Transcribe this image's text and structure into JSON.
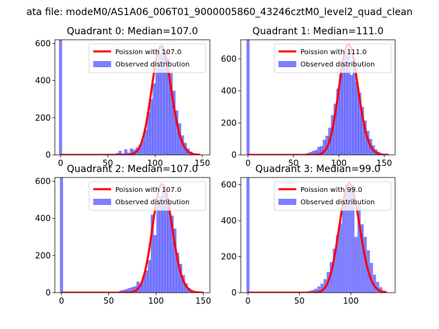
{
  "figure_title": "ata file: modeM0/AS1A06_006T01_9000005860_43246cztM0_level2_quad_clean",
  "chart_data": [
    {
      "type": "bar",
      "title": "Quadrant 0: Median=107.0",
      "xlim": [
        -6,
        158
      ],
      "ylim": [
        0,
        620
      ],
      "xticks": [
        0,
        50,
        100,
        150
      ],
      "yticks": [
        0,
        200,
        400,
        600
      ],
      "bin_width": 3.3,
      "legend": "top-right",
      "series": [
        {
          "name": "Poission with 107.0",
          "kind": "line",
          "color": "#ff0000",
          "mean": 107.0,
          "peak": 585,
          "x_range": [
            0,
            148
          ]
        },
        {
          "name": "Observed distribution",
          "kind": "hist",
          "color": "#0000ff",
          "bars": [
            {
              "x": 0,
              "y": 620
            },
            {
              "x": 60,
              "y": 10
            },
            {
              "x": 63,
              "y": 22
            },
            {
              "x": 66,
              "y": 8
            },
            {
              "x": 69,
              "y": 30
            },
            {
              "x": 72,
              "y": 12
            },
            {
              "x": 75,
              "y": 35
            },
            {
              "x": 78,
              "y": 28
            },
            {
              "x": 81,
              "y": 40
            },
            {
              "x": 84,
              "y": 55
            },
            {
              "x": 87,
              "y": 80
            },
            {
              "x": 90,
              "y": 135
            },
            {
              "x": 93,
              "y": 230
            },
            {
              "x": 96,
              "y": 300
            },
            {
              "x": 99,
              "y": 385
            },
            {
              "x": 102,
              "y": 470
            },
            {
              "x": 105,
              "y": 545
            },
            {
              "x": 108,
              "y": 575
            },
            {
              "x": 111,
              "y": 560
            },
            {
              "x": 114,
              "y": 520
            },
            {
              "x": 117,
              "y": 440
            },
            {
              "x": 120,
              "y": 345
            },
            {
              "x": 123,
              "y": 240
            },
            {
              "x": 126,
              "y": 170
            },
            {
              "x": 129,
              "y": 105
            },
            {
              "x": 132,
              "y": 65
            },
            {
              "x": 135,
              "y": 35
            },
            {
              "x": 138,
              "y": 18
            },
            {
              "x": 141,
              "y": 8
            }
          ]
        }
      ]
    },
    {
      "type": "bar",
      "title": "Quadrant 1: Median=111.0",
      "xlim": [
        -8,
        162
      ],
      "ylim": [
        0,
        720
      ],
      "xticks": [
        0,
        50,
        100,
        150
      ],
      "yticks": [
        0,
        200,
        400,
        600
      ],
      "bin_width": 3.4,
      "legend": "top-right",
      "series": [
        {
          "name": "Poission with 111.0",
          "kind": "line",
          "color": "#ff0000",
          "mean": 111.0,
          "peak": 690,
          "x_range": [
            0,
            155
          ]
        },
        {
          "name": "Observed distribution",
          "kind": "hist",
          "color": "#0000ff",
          "bars": [
            {
              "x": 0,
              "y": 720
            },
            {
              "x": 66,
              "y": 12
            },
            {
              "x": 69,
              "y": 18
            },
            {
              "x": 72,
              "y": 25
            },
            {
              "x": 75,
              "y": 30
            },
            {
              "x": 78,
              "y": 50
            },
            {
              "x": 81,
              "y": 55
            },
            {
              "x": 84,
              "y": 95
            },
            {
              "x": 87,
              "y": 120
            },
            {
              "x": 90,
              "y": 170
            },
            {
              "x": 93,
              "y": 250
            },
            {
              "x": 96,
              "y": 320
            },
            {
              "x": 99,
              "y": 415
            },
            {
              "x": 102,
              "y": 505
            },
            {
              "x": 105,
              "y": 590
            },
            {
              "x": 108,
              "y": 640
            },
            {
              "x": 111,
              "y": 660
            },
            {
              "x": 114,
              "y": 500
            },
            {
              "x": 117,
              "y": 610
            },
            {
              "x": 120,
              "y": 455
            },
            {
              "x": 123,
              "y": 390
            },
            {
              "x": 126,
              "y": 300
            },
            {
              "x": 129,
              "y": 215
            },
            {
              "x": 132,
              "y": 150
            },
            {
              "x": 135,
              "y": 100
            },
            {
              "x": 138,
              "y": 60
            },
            {
              "x": 141,
              "y": 35
            },
            {
              "x": 144,
              "y": 20
            },
            {
              "x": 147,
              "y": 10
            }
          ]
        }
      ]
    },
    {
      "type": "bar",
      "title": "Quadrant 2: Median=107.0",
      "xlim": [
        -7,
        157
      ],
      "ylim": [
        0,
        620
      ],
      "xticks": [
        0,
        50,
        100,
        150
      ],
      "yticks": [
        0,
        200,
        400,
        600
      ],
      "bin_width": 3.3,
      "legend": "top-right",
      "series": [
        {
          "name": "Poission with 107.0",
          "kind": "line",
          "color": "#ff0000",
          "mean": 107.0,
          "peak": 585,
          "x_range": [
            0,
            150
          ]
        },
        {
          "name": "Observed distribution",
          "kind": "hist",
          "color": "#0000ff",
          "bars": [
            {
              "x": 0,
              "y": 620
            },
            {
              "x": 63,
              "y": 12
            },
            {
              "x": 66,
              "y": 15
            },
            {
              "x": 69,
              "y": 20
            },
            {
              "x": 72,
              "y": 25
            },
            {
              "x": 75,
              "y": 30
            },
            {
              "x": 78,
              "y": 35
            },
            {
              "x": 81,
              "y": 60
            },
            {
              "x": 84,
              "y": 45
            },
            {
              "x": 87,
              "y": 90
            },
            {
              "x": 90,
              "y": 120
            },
            {
              "x": 93,
              "y": 175
            },
            {
              "x": 96,
              "y": 420
            },
            {
              "x": 99,
              "y": 310
            },
            {
              "x": 102,
              "y": 490
            },
            {
              "x": 105,
              "y": 520
            },
            {
              "x": 108,
              "y": 545
            },
            {
              "x": 111,
              "y": 530
            },
            {
              "x": 114,
              "y": 480
            },
            {
              "x": 117,
              "y": 415
            },
            {
              "x": 120,
              "y": 345
            },
            {
              "x": 123,
              "y": 215
            },
            {
              "x": 126,
              "y": 155
            },
            {
              "x": 129,
              "y": 95
            },
            {
              "x": 132,
              "y": 50
            },
            {
              "x": 135,
              "y": 25
            },
            {
              "x": 138,
              "y": 12
            },
            {
              "x": 141,
              "y": 6
            }
          ]
        }
      ]
    },
    {
      "type": "bar",
      "title": "Quadrant 3: Median=99.0",
      "xlim": [
        -7,
        143
      ],
      "ylim": [
        0,
        640
      ],
      "xticks": [
        0,
        50,
        100
      ],
      "yticks": [
        0,
        200,
        400,
        600
      ],
      "bin_width": 3.0,
      "legend": "top-right",
      "series": [
        {
          "name": "Poission with 99.0",
          "kind": "line",
          "color": "#ff0000",
          "mean": 99.0,
          "peak": 605,
          "x_range": [
            0,
            135
          ]
        },
        {
          "name": "Observed distribution",
          "kind": "hist",
          "color": "#0000ff",
          "bars": [
            {
              "x": 0,
              "y": 640
            },
            {
              "x": 60,
              "y": 10
            },
            {
              "x": 63,
              "y": 15
            },
            {
              "x": 66,
              "y": 22
            },
            {
              "x": 69,
              "y": 35
            },
            {
              "x": 72,
              "y": 50
            },
            {
              "x": 75,
              "y": 75
            },
            {
              "x": 78,
              "y": 115
            },
            {
              "x": 81,
              "y": 170
            },
            {
              "x": 84,
              "y": 245
            },
            {
              "x": 87,
              "y": 320
            },
            {
              "x": 90,
              "y": 385
            },
            {
              "x": 93,
              "y": 505
            },
            {
              "x": 96,
              "y": 600
            },
            {
              "x": 99,
              "y": 575
            },
            {
              "x": 102,
              "y": 600
            },
            {
              "x": 105,
              "y": 310
            },
            {
              "x": 108,
              "y": 490
            },
            {
              "x": 111,
              "y": 380
            },
            {
              "x": 114,
              "y": 310
            },
            {
              "x": 117,
              "y": 235
            },
            {
              "x": 120,
              "y": 165
            },
            {
              "x": 123,
              "y": 100
            },
            {
              "x": 126,
              "y": 60
            },
            {
              "x": 129,
              "y": 30
            },
            {
              "x": 132,
              "y": 12
            }
          ]
        }
      ]
    }
  ]
}
